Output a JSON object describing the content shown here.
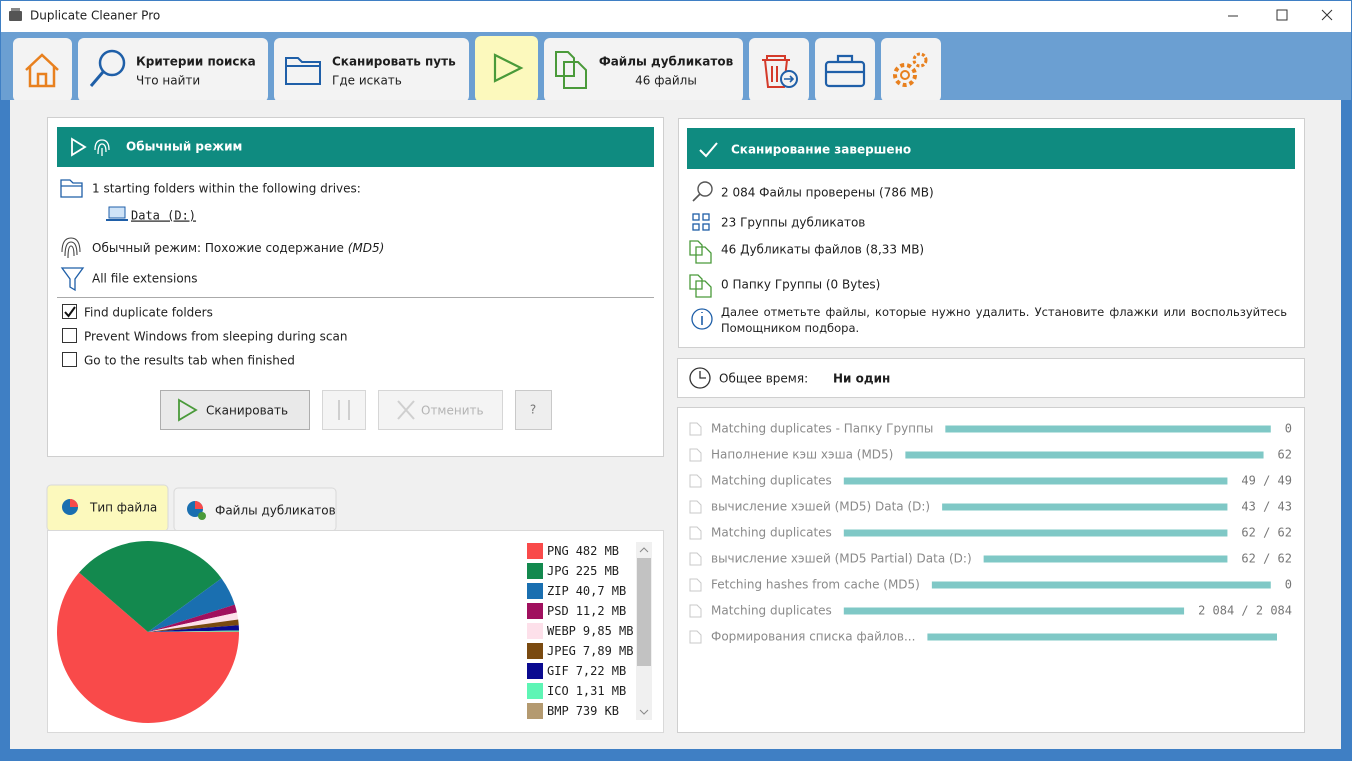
{
  "window": {
    "title": "Duplicate Cleaner Pro"
  },
  "tabs": [
    {
      "title": "Критерии поиска",
      "subtitle": "Что найти"
    },
    {
      "title": "Сканировать путь",
      "subtitle": "Где искать"
    },
    {
      "title": "Файлы дубликатов",
      "subtitle": "46 файлы"
    }
  ],
  "scan_panel": {
    "header": "Обычный режим",
    "folders": "1 starting folders within the following drives:",
    "drive": "Data (D:)",
    "mode": "Обычный режим: Похожие содержание",
    "mode_hash": "(MD5)",
    "extensions": "All file extensions",
    "options": [
      {
        "label": "Find duplicate folders",
        "checked": true
      },
      {
        "label": "Prevent Windows from sleeping during scan",
        "checked": false
      },
      {
        "label": "Go to the results tab when finished",
        "checked": false
      }
    ],
    "buttons": {
      "scan": "Сканировать",
      "cancel": "Отменить",
      "help": "?"
    }
  },
  "results_panel": {
    "header": "Сканирование завершено",
    "lines": [
      "2 084 Файлы проверены (786 MB)",
      "23 Группы дубликатов",
      "46 Дубликаты файлов (8,33 MB)",
      "0 Папку Группы (0 Bytes)"
    ],
    "note": "Далее отметьте файлы, которые нужно удалить. Установите флажки или воспользуйтесь Помощником подбора."
  },
  "time": {
    "label": "Общее время:",
    "value": "Ни один"
  },
  "progress": [
    {
      "label": "Matching duplicates - Папку Группы",
      "count": "0"
    },
    {
      "label": "Наполнение кэш хэша (MD5)",
      "count": "62"
    },
    {
      "label": "Matching duplicates",
      "count": "49 / 49"
    },
    {
      "label": "вычисление хэшей (MD5) Data (D:)",
      "count": "43 / 43"
    },
    {
      "label": "Matching duplicates",
      "count": "62 / 62"
    },
    {
      "label": "вычисление хэшей (MD5 Partial) Data (D:)",
      "count": "62 / 62"
    },
    {
      "label": "Fetching hashes from cache (MD5)",
      "count": "0"
    },
    {
      "label": "Matching duplicates",
      "count": "2 084 / 2 084"
    },
    {
      "label": "Формирования списка файлов..."
    }
  ],
  "chart_tabs": [
    "Тип файла",
    "Файлы дубликатов"
  ],
  "chart_data": {
    "type": "pie",
    "categories": [
      "PNG",
      "JPG",
      "ZIP",
      "PSD",
      "WEBP",
      "JPEG",
      "GIF",
      "ICO",
      "BMP"
    ],
    "values": [
      482,
      225,
      40.7,
      11.2,
      9.85,
      7.89,
      7.22,
      1.31,
      0.739
    ],
    "value_labels": [
      "482 MB",
      "225 MB",
      "40,7 MB",
      "11,2 MB",
      "9,85 MB",
      "7,89 MB",
      "7,22 MB",
      "1,31 MB",
      "739 KB"
    ],
    "colors": [
      "#f94a4a",
      "#13894e",
      "#1a6fb0",
      "#a0105e",
      "#fde0ea",
      "#7a4a10",
      "#0a0a90",
      "#5ef5b5",
      "#b49a70"
    ]
  }
}
